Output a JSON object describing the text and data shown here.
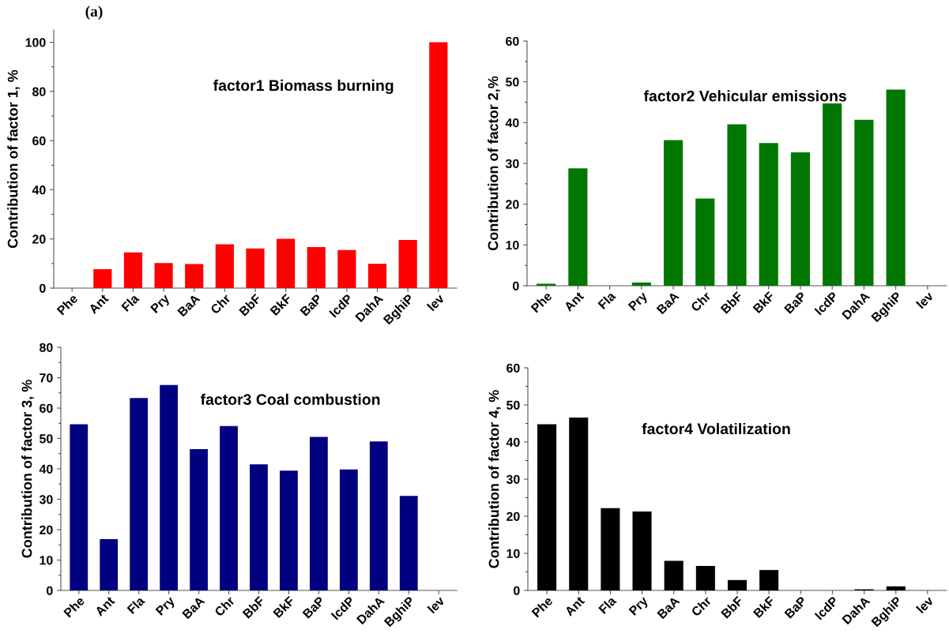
{
  "chart_data": [
    {
      "type": "bar",
      "title": "factor1 Biomass burning",
      "ylabel": "Contribution of factor 1, %",
      "annotations": [
        "(a)"
      ],
      "categories": [
        "Phe",
        "Ant",
        "Fla",
        "Pry",
        "BaA",
        "Chr",
        "BbF",
        "BkF",
        "BaP",
        "IcdP",
        "DahA",
        "BghiP",
        "lev"
      ],
      "values": [
        0,
        7.7,
        14.5,
        10.2,
        9.8,
        17.8,
        16.1,
        20.1,
        16.7,
        15.5,
        9.9,
        19.6,
        100
      ],
      "color": "#ff0000",
      "ylim": [
        0,
        105
      ],
      "yticks": [
        0,
        20,
        40,
        60,
        80,
        100
      ],
      "grid": false
    },
    {
      "type": "bar",
      "title": "factor2 Vehicular emissions",
      "ylabel": "Contribution of factor 2,%",
      "categories": [
        "Phe",
        "Ant",
        "Fla",
        "Pry",
        "BaA",
        "Chr",
        "BbF",
        "BkF",
        "BaP",
        "IcdP",
        "DahA",
        "BghiP",
        "lev"
      ],
      "values": [
        0.5,
        28.8,
        0,
        0.8,
        35.7,
        21.4,
        39.6,
        35.0,
        32.7,
        44.7,
        40.7,
        48.1,
        0
      ],
      "color": "#007700",
      "ylim": [
        0,
        60
      ],
      "yticks": [
        0,
        10,
        20,
        30,
        40,
        50,
        60
      ],
      "grid": false
    },
    {
      "type": "bar",
      "title": "factor3 Coal combustion",
      "ylabel": "Contribution of factor 3, %",
      "categories": [
        "Phe",
        "Ant",
        "Fla",
        "Pry",
        "BaA",
        "Chr",
        "BbF",
        "BkF",
        "BaP",
        "IcdP",
        "DahA",
        "BghiP",
        "lev"
      ],
      "values": [
        54.7,
        16.9,
        63.3,
        67.6,
        46.5,
        54.1,
        41.5,
        39.4,
        50.5,
        39.8,
        49.0,
        31.1,
        0
      ],
      "color": "#000080",
      "ylim": [
        0,
        80
      ],
      "yticks": [
        0,
        10,
        20,
        30,
        40,
        50,
        60,
        70,
        80
      ],
      "grid": false
    },
    {
      "type": "bar",
      "title": "factor4 Volatilization",
      "ylabel": "Contribution of factor 4, %",
      "categories": [
        "Phe",
        "Ant",
        "Fla",
        "Pry",
        "BaA",
        "Chr",
        "BbF",
        "BkF",
        "BaP",
        "IcdP",
        "DahA",
        "BghiP",
        "lev"
      ],
      "values": [
        44.8,
        46.6,
        22.2,
        21.3,
        8.0,
        6.6,
        2.8,
        5.5,
        0,
        0,
        0.3,
        1.1,
        0
      ],
      "color": "#000000",
      "ylim": [
        0,
        60
      ],
      "yticks": [
        0,
        10,
        20,
        30,
        40,
        50,
        60
      ],
      "grid": false
    }
  ]
}
